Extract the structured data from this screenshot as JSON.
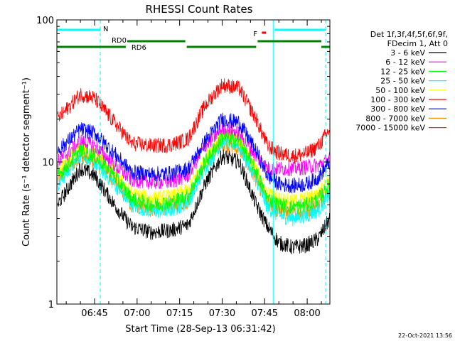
{
  "chart_data": {
    "type": "line",
    "title": "RHESSI Count Rates",
    "xlabel": "Start Time (28-Sep-13 06:31:42)",
    "ylabel": "Count Rate (s⁻¹ detector segment⁻¹)",
    "yscale": "log",
    "ylim": [
      1,
      100
    ],
    "xlim": [
      "06:31:42",
      "08:08:00"
    ],
    "x_ticks": [
      "06:45",
      "07:00",
      "07:15",
      "07:30",
      "07:45",
      "08:00"
    ],
    "y_ticks": [
      "1",
      "10",
      "100"
    ],
    "grid": false,
    "legend_position": "right",
    "legend_header": [
      "Det 1f,3f,4f,5f,6f,9f,",
      "FDecim 1, Att 0"
    ],
    "series": [
      {
        "name": "3 - 6 keV",
        "color": "#000000",
        "x": [
          "06:32",
          "06:40",
          "06:45",
          "06:52",
          "06:58",
          "07:05",
          "07:12",
          "07:18",
          "07:24",
          "07:30",
          "07:36",
          "07:42",
          "07:46",
          "07:50",
          "07:55",
          "08:00",
          "08:04",
          "08:08"
        ],
        "y": [
          5,
          9,
          8,
          5,
          3.5,
          3.2,
          3.3,
          3.6,
          7,
          11,
          10,
          5,
          3.5,
          2.7,
          2.5,
          2.6,
          2.9,
          4
        ]
      },
      {
        "name": "6 - 12 keV",
        "color": "#ff00ff",
        "x": [
          "06:32",
          "06:40",
          "06:45",
          "06:52",
          "06:58",
          "07:05",
          "07:12",
          "07:18",
          "07:24",
          "07:30",
          "07:36",
          "07:42",
          "07:46",
          "07:50",
          "07:55",
          "08:00",
          "08:04",
          "08:08"
        ],
        "y": [
          10,
          14,
          13,
          9.5,
          7.5,
          7.2,
          7.3,
          8,
          13,
          17,
          16,
          11,
          9,
          9,
          9,
          9.2,
          9.5,
          10.5
        ]
      },
      {
        "name": "12 - 25 keV",
        "color": "#00ff00",
        "x": [
          "06:32",
          "06:40",
          "06:45",
          "06:52",
          "06:58",
          "07:05",
          "07:12",
          "07:18",
          "07:24",
          "07:30",
          "07:36",
          "07:42",
          "07:46",
          "07:50",
          "07:55",
          "08:00",
          "08:04",
          "08:08"
        ],
        "y": [
          8,
          12,
          11,
          8,
          5.5,
          5,
          5.2,
          5.8,
          10,
          15,
          14,
          8.5,
          5.5,
          5,
          4.8,
          5,
          5.5,
          7
        ]
      },
      {
        "name": "25 - 50 keV",
        "color": "#00ffff",
        "x": [
          "06:32",
          "06:40",
          "06:45",
          "06:52",
          "06:58",
          "07:05",
          "07:12",
          "07:18",
          "07:24",
          "07:30",
          "07:36",
          "07:42",
          "07:46",
          "07:50",
          "07:55",
          "08:00",
          "08:04",
          "08:08"
        ],
        "y": [
          7,
          11,
          10,
          7,
          5,
          4.5,
          4.6,
          5.2,
          9,
          14,
          13,
          7.5,
          4.8,
          4.2,
          4,
          4.2,
          4.6,
          6
        ]
      },
      {
        "name": "50 - 100 keV",
        "color": "#ffff00",
        "x": [
          "06:32",
          "06:40",
          "06:45",
          "06:52",
          "06:58",
          "07:05",
          "07:12",
          "07:18",
          "07:24",
          "07:30",
          "07:36",
          "07:42",
          "07:46",
          "07:50",
          "07:55",
          "08:00",
          "08:04",
          "08:08"
        ],
        "y": [
          8.5,
          12.5,
          11.5,
          8.5,
          6,
          5.5,
          5.7,
          6.3,
          10.5,
          15.5,
          14.5,
          9,
          6,
          5.5,
          5.3,
          5.5,
          6,
          7.5
        ]
      },
      {
        "name": "100 - 300 keV",
        "color": "#ff0000",
        "x": [
          "06:32",
          "06:40",
          "06:45",
          "06:52",
          "06:58",
          "07:05",
          "07:12",
          "07:18",
          "07:24",
          "07:30",
          "07:36",
          "07:42",
          "07:46",
          "07:50",
          "07:55",
          "08:00",
          "08:04",
          "08:08"
        ],
        "y": [
          20,
          30,
          28,
          19,
          13.5,
          13,
          13.2,
          14.5,
          25,
          35,
          33,
          20,
          13,
          11.5,
          11,
          11.5,
          13,
          17
        ]
      },
      {
        "name": "300 - 800 keV",
        "color": "#0000ff",
        "x": [
          "06:32",
          "06:40",
          "06:45",
          "06:52",
          "06:58",
          "07:05",
          "07:12",
          "07:18",
          "07:24",
          "07:30",
          "07:36",
          "07:42",
          "07:46",
          "07:50",
          "07:55",
          "08:00",
          "08:04",
          "08:08"
        ],
        "y": [
          12,
          17,
          16,
          11.5,
          8.5,
          8.2,
          8.3,
          9,
          14,
          20,
          19,
          12,
          8,
          7,
          6.8,
          7,
          7.8,
          10
        ]
      },
      {
        "name": "800 - 7000 keV",
        "color": "#ff8c00",
        "x": [
          "06:32",
          "06:40",
          "06:45",
          "06:52",
          "06:58",
          "07:05",
          "07:12",
          "07:18",
          "07:24",
          "07:30",
          "07:36",
          "07:42",
          "07:46",
          "07:50",
          "07:55",
          "08:00",
          "08:04",
          "08:08"
        ],
        "y": [
          7.5,
          11,
          10,
          7.5,
          5,
          4.6,
          4.8,
          5.3,
          9.5,
          13.5,
          12.5,
          7.5,
          5,
          4.5,
          4.3,
          4.5,
          5,
          6.5
        ]
      },
      {
        "name": "7000 - 15000 keV",
        "color": "#a0522d",
        "x": [],
        "y": []
      }
    ],
    "annotations": [
      {
        "text": "N",
        "color": "#00ffff",
        "segments": [
          [
            "06:31:42",
            "06:47"
          ],
          [
            "07:48:30",
            "08:06:30"
          ]
        ]
      },
      {
        "text": "F",
        "color": "#ff0000",
        "segments": [
          [
            "07:44",
            "07:45:30"
          ]
        ]
      },
      {
        "text": "RD0",
        "color": "#008000",
        "segments": [
          [
            "06:31:42",
            "06:56"
          ],
          [
            "06:56:30",
            "07:17"
          ],
          [
            "07:17:30",
            "07:42"
          ],
          [
            "07:42:30",
            "08:05"
          ],
          [
            "08:05",
            "08:08"
          ]
        ]
      },
      {
        "text": "RD6",
        "color": "#008000",
        "segments": []
      }
    ],
    "vertical_markers": [
      {
        "time": "06:31:42",
        "style": "solid",
        "color": "#00ffff"
      },
      {
        "time": "06:47",
        "style": "dashed",
        "color": "#00ffff"
      },
      {
        "time": "07:48",
        "style": "solid",
        "color": "#00ffff"
      },
      {
        "time": "08:06:30",
        "style": "dashed",
        "color": "#00ffff"
      }
    ]
  },
  "footer": {
    "timestamp": "22-Oct-2021 13:56"
  }
}
